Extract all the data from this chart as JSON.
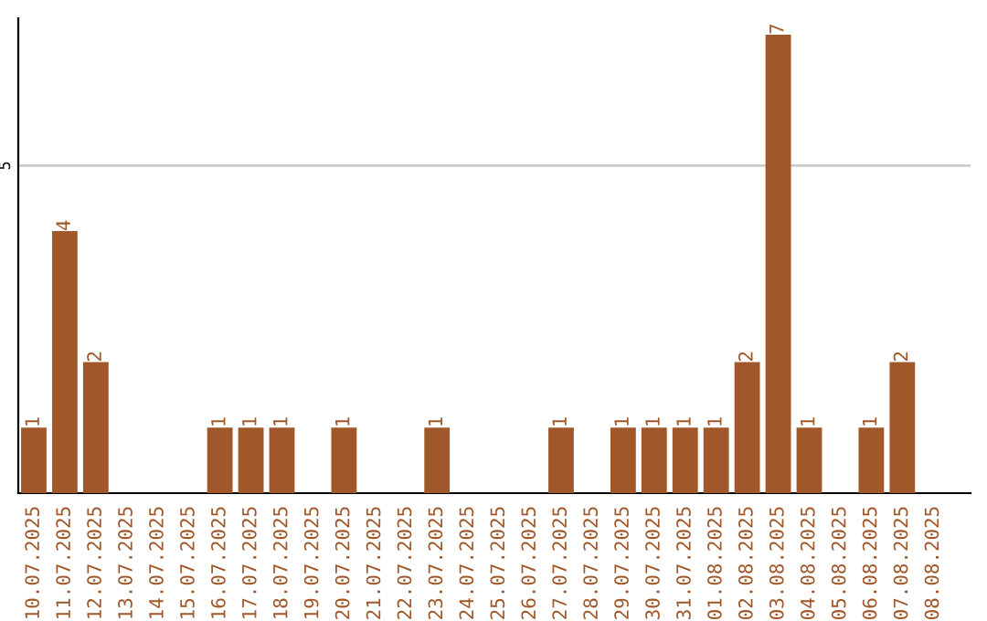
{
  "chart_data": {
    "type": "bar",
    "categories": [
      "10.07.2025",
      "11.07.2025",
      "12.07.2025",
      "13.07.2025",
      "14.07.2025",
      "15.07.2025",
      "16.07.2025",
      "17.07.2025",
      "18.07.2025",
      "19.07.2025",
      "20.07.2025",
      "21.07.2025",
      "22.07.2025",
      "23.07.2025",
      "24.07.2025",
      "25.07.2025",
      "26.07.2025",
      "27.07.2025",
      "28.07.2025",
      "29.07.2025",
      "30.07.2025",
      "31.07.2025",
      "01.08.2025",
      "02.08.2025",
      "03.08.2025",
      "04.08.2025",
      "05.08.2025",
      "06.08.2025",
      "07.08.2025",
      "08.08.2025"
    ],
    "values": [
      1,
      4,
      2,
      0,
      0,
      0,
      1,
      1,
      1,
      0,
      1,
      0,
      0,
      1,
      0,
      0,
      0,
      1,
      0,
      1,
      1,
      1,
      1,
      2,
      7,
      1,
      0,
      1,
      2,
      0
    ],
    "value_labels": [
      "1",
      "4",
      "2",
      null,
      null,
      null,
      "1",
      "1",
      "1",
      null,
      "1",
      null,
      null,
      "1",
      null,
      null,
      null,
      "1",
      null,
      "1",
      "1",
      "1",
      "1",
      "2",
      "7",
      "1",
      null,
      "1",
      "2",
      null
    ],
    "color": "#a0582a",
    "ylim": [
      0,
      7.25
    ],
    "yticks": [
      5
    ],
    "grid": "y"
  }
}
